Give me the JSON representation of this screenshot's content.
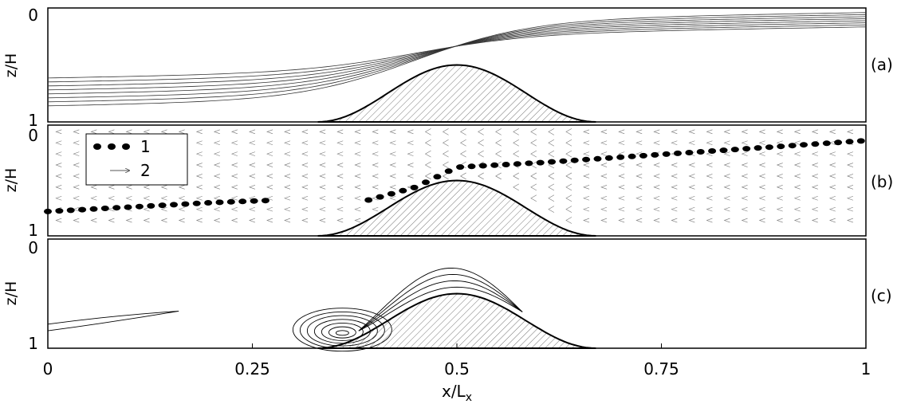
{
  "figure": {
    "x_axis_label": "x/L",
    "x_axis_label_sub": "x",
    "x_ticks": [
      "0",
      "0.25",
      "0.5",
      "0.75",
      "1"
    ],
    "shared_x_range": [
      0,
      1
    ]
  },
  "chart_data": [
    {
      "type": "contour",
      "panel_label": "(a)",
      "ylabel": "z/H",
      "y_ticks": [
        "0",
        "1"
      ],
      "xlim": [
        0,
        1
      ],
      "ylim": [
        1,
        0
      ],
      "hill": {
        "shape": "cosine-bell",
        "x_start": 0.33,
        "x_peak": 0.5,
        "x_end": 0.67,
        "crest_depth": 0.5
      },
      "contour_lines": {
        "count": 8,
        "trend": "lines descend from z/H≈0.85 at x=0 to z/H≈0.1 at x=1, bending over the hill crest near x≈0.45"
      }
    },
    {
      "type": "vector-field",
      "panel_label": "(b)",
      "ylabel": "z/H",
      "y_ticks": [
        "0",
        "1"
      ],
      "xlim": [
        0,
        1
      ],
      "ylim": [
        1,
        0
      ],
      "legend": {
        "placement": "top-left",
        "entries": [
          {
            "symbol": "dots",
            "label": "1"
          },
          {
            "symbol": "arrow",
            "label": "2"
          }
        ]
      },
      "series": [
        {
          "name": "1",
          "x": [
            0.0,
            0.1,
            0.2,
            0.27,
            0.39,
            0.45,
            0.5,
            0.6,
            0.7,
            0.8,
            0.9,
            1.0
          ],
          "y": [
            0.78,
            0.74,
            0.7,
            0.68,
            0.68,
            0.56,
            0.38,
            0.34,
            0.29,
            0.24,
            0.19,
            0.14
          ]
        }
      ],
      "hill": {
        "shape": "cosine-bell",
        "x_start": 0.33,
        "x_peak": 0.5,
        "x_end": 0.67,
        "crest_depth": 0.5
      }
    },
    {
      "type": "contour",
      "panel_label": "(c)",
      "ylabel": "z/H",
      "y_ticks": [
        "0",
        "1"
      ],
      "xlim": [
        0,
        1
      ],
      "ylim": [
        1,
        0
      ],
      "hill": {
        "shape": "cosine-bell",
        "x_start": 0.33,
        "x_peak": 0.5,
        "x_end": 0.67,
        "crest_depth": 0.5
      },
      "features": [
        "elongated contour near x 0–0.16 at z/H≈0.8",
        "nested recirculation contours near x 0.28–0.4 at z/H≈0.88",
        "contours hugging windward slope of hill up to crest"
      ]
    }
  ]
}
